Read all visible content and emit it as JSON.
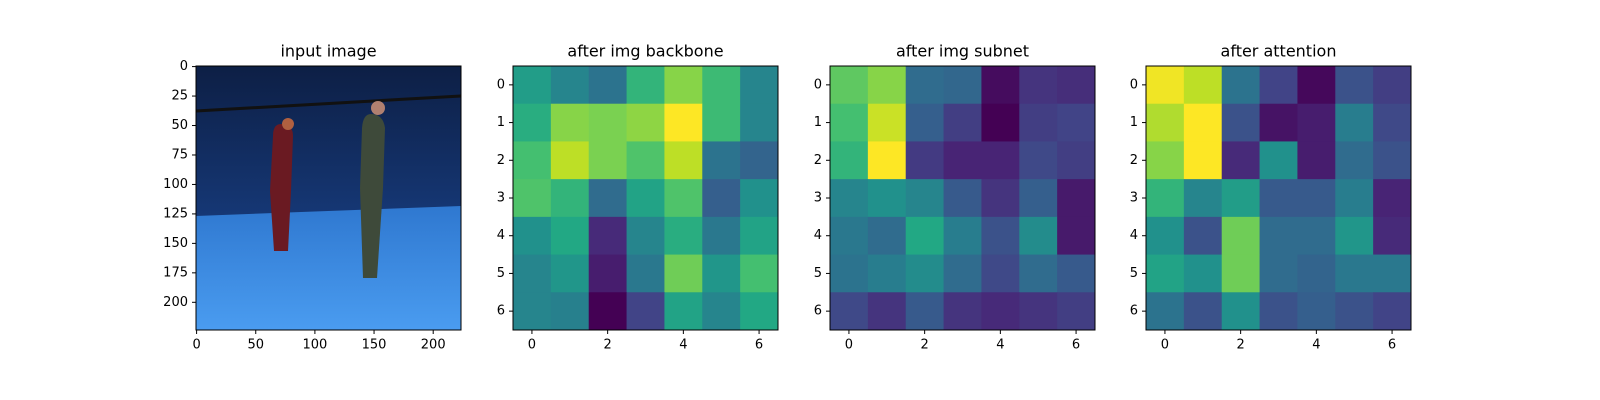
{
  "chart_data": [
    {
      "type": "image",
      "title": "input image",
      "xlim": [
        -0.5,
        223.5
      ],
      "ylim": [
        223.5,
        -0.5
      ],
      "xticks": [
        0,
        50,
        100,
        150,
        200
      ],
      "yticks": [
        0,
        25,
        50,
        75,
        100,
        125,
        150,
        175,
        200
      ]
    },
    {
      "type": "heatmap",
      "title": "after img backbone",
      "colormap": "viridis",
      "xlim": [
        -0.5,
        6.5
      ],
      "ylim": [
        6.5,
        -0.5
      ],
      "xticks": [
        0,
        2,
        4,
        6
      ],
      "yticks": [
        0,
        1,
        2,
        3,
        4,
        5,
        6
      ],
      "values": [
        [
          0.55,
          0.45,
          0.38,
          0.65,
          0.82,
          0.68,
          0.45
        ],
        [
          0.62,
          0.82,
          0.8,
          0.83,
          1.0,
          0.68,
          0.45
        ],
        [
          0.7,
          0.9,
          0.8,
          0.72,
          0.9,
          0.38,
          0.32
        ],
        [
          0.72,
          0.65,
          0.35,
          0.58,
          0.72,
          0.3,
          0.5
        ],
        [
          0.5,
          0.6,
          0.12,
          0.45,
          0.62,
          0.4,
          0.58
        ],
        [
          0.45,
          0.52,
          0.08,
          0.4,
          0.78,
          0.52,
          0.7
        ],
        [
          0.45,
          0.43,
          0.0,
          0.2,
          0.58,
          0.45,
          0.6
        ]
      ]
    },
    {
      "type": "heatmap",
      "title": "after img subnet",
      "colormap": "viridis",
      "xlim": [
        -0.5,
        6.5
      ],
      "ylim": [
        6.5,
        -0.5
      ],
      "xticks": [
        0,
        2,
        4,
        6
      ],
      "yticks": [
        0,
        1,
        2,
        3,
        4,
        5,
        6
      ],
      "values": [
        [
          0.75,
          0.82,
          0.35,
          0.33,
          0.03,
          0.15,
          0.13
        ],
        [
          0.7,
          0.92,
          0.3,
          0.18,
          0.0,
          0.18,
          0.2
        ],
        [
          0.65,
          1.0,
          0.17,
          0.1,
          0.1,
          0.22,
          0.18
        ],
        [
          0.45,
          0.5,
          0.45,
          0.28,
          0.15,
          0.3,
          0.07
        ],
        [
          0.4,
          0.35,
          0.6,
          0.42,
          0.25,
          0.48,
          0.07
        ],
        [
          0.38,
          0.42,
          0.48,
          0.35,
          0.22,
          0.35,
          0.28
        ],
        [
          0.22,
          0.15,
          0.28,
          0.15,
          0.12,
          0.15,
          0.18
        ]
      ]
    },
    {
      "type": "heatmap",
      "title": "after attention",
      "colormap": "viridis",
      "xlim": [
        -0.5,
        6.5
      ],
      "ylim": [
        6.5,
        -0.5
      ],
      "xticks": [
        0,
        2,
        4,
        6
      ],
      "yticks": [
        0,
        1,
        2,
        3,
        4,
        5,
        6
      ],
      "values": [
        [
          0.98,
          0.9,
          0.38,
          0.2,
          0.02,
          0.25,
          0.18
        ],
        [
          0.88,
          1.0,
          0.25,
          0.05,
          0.08,
          0.42,
          0.22
        ],
        [
          0.82,
          1.0,
          0.12,
          0.5,
          0.08,
          0.35,
          0.25
        ],
        [
          0.65,
          0.45,
          0.55,
          0.28,
          0.28,
          0.42,
          0.1
        ],
        [
          0.5,
          0.25,
          0.78,
          0.35,
          0.35,
          0.52,
          0.12
        ],
        [
          0.58,
          0.5,
          0.78,
          0.35,
          0.32,
          0.4,
          0.4
        ],
        [
          0.38,
          0.25,
          0.5,
          0.25,
          0.3,
          0.25,
          0.2
        ]
      ]
    }
  ]
}
